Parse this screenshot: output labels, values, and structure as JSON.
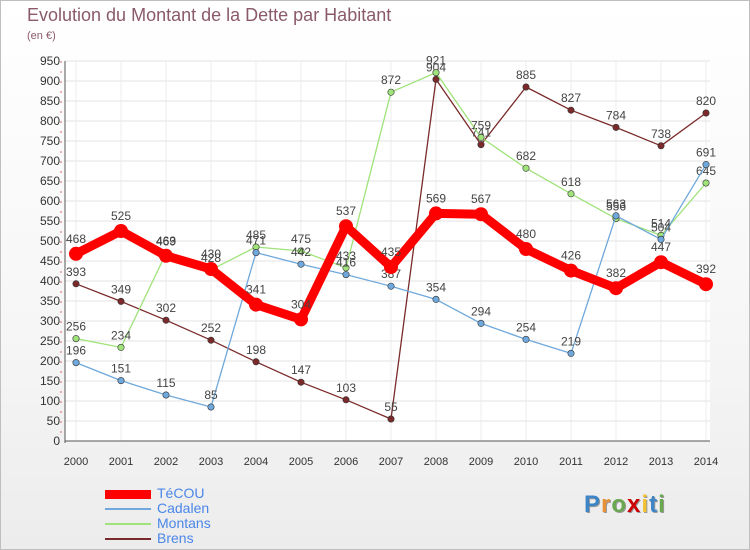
{
  "header": {
    "title": "Evolution du Montant de la Dette par Habitant",
    "subtitle": "(en €)"
  },
  "logo": {
    "text": "Proxiti"
  },
  "chart_data": {
    "type": "line",
    "title": "Evolution du Montant de la Dette par Habitant",
    "subtitle": "(en €)",
    "xlabel": "",
    "ylabel": "",
    "x": [
      "2000",
      "2001",
      "2002",
      "2003",
      "2004",
      "2005",
      "2006",
      "2007",
      "2008",
      "2009",
      "2010",
      "2011",
      "2012",
      "2013",
      "2014"
    ],
    "ylim": [
      0,
      950
    ],
    "yticks": [
      0,
      50,
      100,
      150,
      200,
      250,
      300,
      350,
      400,
      450,
      500,
      550,
      600,
      650,
      700,
      750,
      800,
      850,
      900,
      950
    ],
    "grid": true,
    "legend_position": "bottom-left",
    "series": [
      {
        "name": "TéCOU",
        "color": "#ff0000",
        "values": [
          468,
          525,
          463,
          430,
          341,
          304,
          537,
          435,
          569,
          567,
          480,
          426,
          382,
          447,
          392
        ]
      },
      {
        "name": "Cadalen",
        "color": "#6fa8dc",
        "values": [
          196,
          151,
          115,
          85,
          471,
          442,
          416,
          387,
          354,
          294,
          254,
          219,
          563,
          504,
          691
        ]
      },
      {
        "name": "Montans",
        "color": "#9fe37a",
        "values": [
          256,
          234,
          469,
          428,
          485,
          475,
          433,
          872,
          921,
          759,
          682,
          618,
          556,
          514,
          645
        ]
      },
      {
        "name": "Brens",
        "color": "#7a2a2a",
        "values": [
          393,
          349,
          302,
          252,
          198,
          147,
          103,
          55,
          904,
          741,
          885,
          827,
          784,
          738,
          820
        ]
      }
    ]
  }
}
